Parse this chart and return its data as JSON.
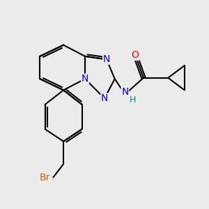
{
  "bg_color": "#ebebeb",
  "bond_color": "#000000",
  "bond_width": 1.5,
  "atom_colors": {
    "N": "#0000ee",
    "O": "#ff0000",
    "Br": "#cc6600",
    "H": "#008888",
    "C": "#000000"
  },
  "font_size": 10,
  "figsize": [
    3.0,
    3.0
  ],
  "dpi": 100
}
